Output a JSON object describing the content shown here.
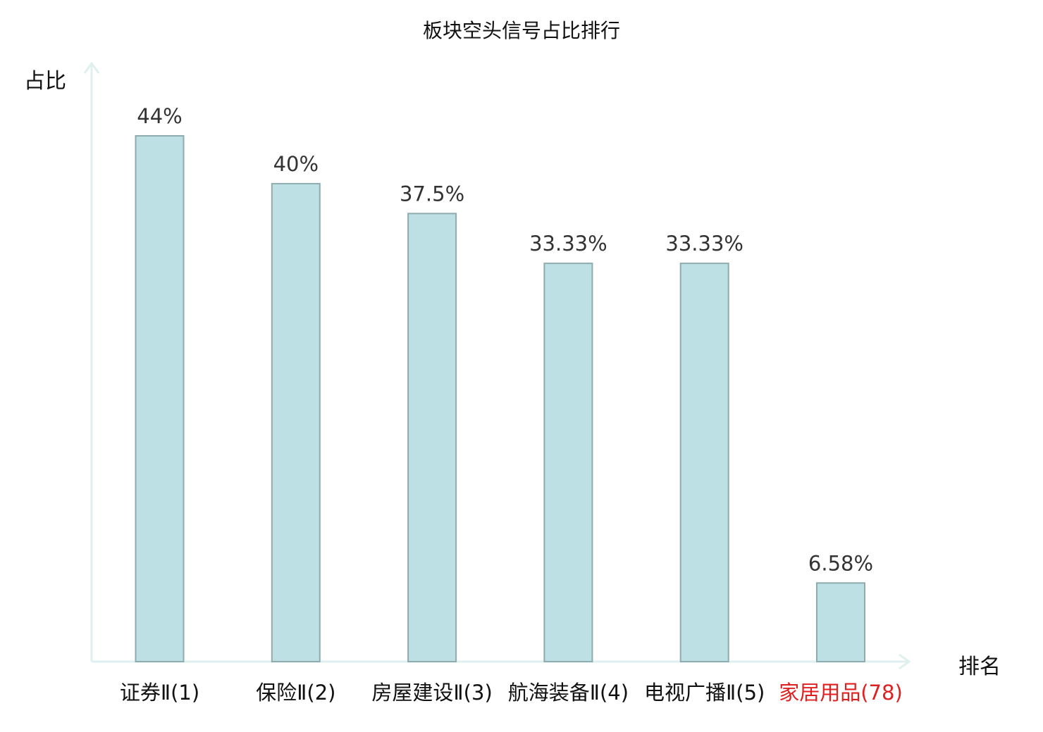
{
  "chart_data": {
    "type": "bar",
    "title": "板块空头信号占比排行",
    "ylabel": "占比",
    "xlabel": "排名",
    "categories": [
      {
        "name": "证券Ⅱ",
        "rank": "(1)",
        "highlight": false
      },
      {
        "name": "保险Ⅱ",
        "rank": "(2)",
        "highlight": false
      },
      {
        "name": "房屋建设Ⅱ",
        "rank": "(3)",
        "highlight": false
      },
      {
        "name": "航海装备Ⅱ",
        "rank": "(4)",
        "highlight": false
      },
      {
        "name": "电视广播Ⅱ",
        "rank": "(5)",
        "highlight": false
      },
      {
        "name": "家居用品",
        "rank": "(78)",
        "highlight": true
      }
    ],
    "values": [
      44,
      40,
      37.5,
      33.33,
      33.33,
      6.58
    ],
    "value_labels": [
      "44%",
      "40%",
      "37.5%",
      "33.33%",
      "33.33%",
      "6.58%"
    ],
    "ylim": [
      0,
      48
    ],
    "grid": false,
    "colors": {
      "bar_fill": "#bce0e3",
      "bar_stroke": "#8fabae",
      "axis": "#dff0ee",
      "highlight_text": "#e02020",
      "label_text": "#333333"
    }
  }
}
